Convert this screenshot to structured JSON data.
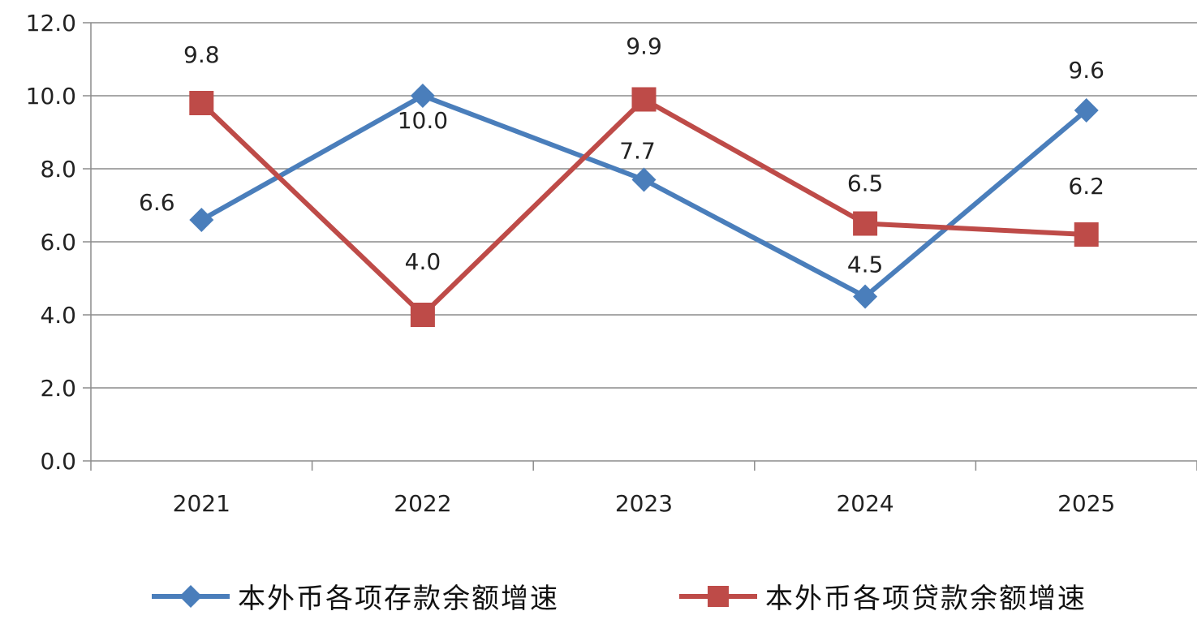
{
  "chart_data": {
    "type": "line",
    "categories": [
      "2021",
      "2022",
      "2023",
      "2024",
      "2025"
    ],
    "ylim": [
      0,
      12
    ],
    "yticks": [
      "0.0",
      "2.0",
      "4.0",
      "6.0",
      "8.0",
      "10.0",
      "12.0"
    ],
    "grid": true,
    "legend_position": "bottom",
    "series": [
      {
        "name": "本外币各项存款余额增速",
        "values": [
          6.6,
          10.0,
          7.7,
          4.5,
          9.6
        ],
        "labels": [
          "6.6",
          "10.0",
          "7.7",
          "4.5",
          "9.6"
        ],
        "color": "#4a7ebb",
        "marker": "diamond"
      },
      {
        "name": "本外币各项贷款余额增速",
        "values": [
          9.8,
          4.0,
          9.9,
          6.5,
          6.2
        ],
        "labels": [
          "9.8",
          "4.0",
          "9.9",
          "6.5",
          "6.2"
        ],
        "color": "#be4b48",
        "marker": "square"
      }
    ]
  }
}
